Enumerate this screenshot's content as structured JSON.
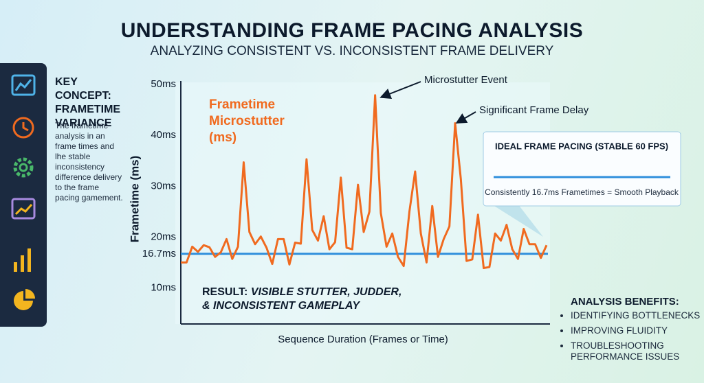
{
  "header": {
    "title": "UNDERSTANDING FRAME PACING ANALYSIS",
    "subtitle": "ANALYZING CONSISTENT VS. INCONSISTENT FRAME DELIVERY"
  },
  "key_concept": {
    "title": "KEY CONCEPT: FRAMETIME VARIANCE",
    "body": "The frametime analysis in an frame times and lhe stable inconsistency difference delivery to the frame pacing gamement."
  },
  "benefits": {
    "title": "ANALYSIS BENEFITS:",
    "items": [
      "IDENTIFYING BOTTLENECKS",
      "IMPROVING FLUIDITY",
      "TROUBLESHOOTING PERFORMANCE ISSUES"
    ]
  },
  "chart_data": {
    "type": "line",
    "ylabel": "Frametime (ms)",
    "xlabel": "Sequence Duration (Frames or Time)",
    "ylim": [
      2.9,
      50.7
    ],
    "yticks": [
      {
        "value": 10,
        "label": "10ms"
      },
      {
        "value": 16.7,
        "label": "16.7ms"
      },
      {
        "value": 20,
        "label": "20ms"
      },
      {
        "value": 30,
        "label": "30ms"
      },
      {
        "value": 40,
        "label": "40ms"
      },
      {
        "value": 50,
        "label": "50ms"
      }
    ],
    "series": [
      {
        "name": "Frametime Microstutter (ms)",
        "color": "#f06a1f",
        "values": [
          15,
          15,
          18.1,
          17.1,
          18.4,
          18,
          16.1,
          17,
          19.6,
          15.7,
          18.1,
          34.7,
          21,
          18.6,
          20.1,
          17.9,
          14.7,
          19.6,
          19.6,
          14.6,
          18.9,
          18.7,
          35.3,
          21.4,
          19.3,
          24.1,
          17.6,
          19,
          31.7,
          17.9,
          17.6,
          30.3,
          21,
          25,
          47.9,
          24.7,
          18.1,
          20.7,
          16.1,
          14.3,
          25,
          32.9,
          20.7,
          15,
          26.1,
          16.1,
          19.6,
          22.1,
          42.4,
          31.4,
          15.3,
          15.6,
          24.4,
          13.9,
          14.1,
          20.7,
          19.3,
          22.4,
          17.6,
          15.7,
          21.6,
          18.6,
          18.6,
          15.9,
          18.4
        ]
      }
    ],
    "reference_line": {
      "value": 16.7,
      "color": "#2f8fdc",
      "title": "IDEAL FRAME PACING (STABLE 60 FPS)",
      "caption": "Consistently 16.7ms Frametimes = Smooth Playback"
    },
    "annotations": [
      "Microstutter Event",
      "Significant Frame Delay"
    ],
    "result": {
      "lead": "RESULT: ",
      "text": "VISIBLE STUTTER, JUDDER, & INCONSISTENT GAMEPLAY"
    }
  }
}
